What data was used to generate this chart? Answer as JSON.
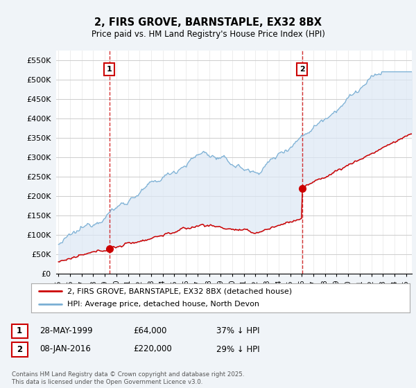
{
  "title": "2, FIRS GROVE, BARNSTAPLE, EX32 8BX",
  "subtitle": "Price paid vs. HM Land Registry's House Price Index (HPI)",
  "background_color": "#f0f4f8",
  "plot_bg_color": "#ffffff",
  "ylim": [
    0,
    575000
  ],
  "yticks": [
    0,
    50000,
    100000,
    150000,
    200000,
    250000,
    300000,
    350000,
    400000,
    450000,
    500000,
    550000
  ],
  "ytick_labels": [
    "£0",
    "£50K",
    "£100K",
    "£150K",
    "£200K",
    "£250K",
    "£300K",
    "£350K",
    "£400K",
    "£450K",
    "£500K",
    "£550K"
  ],
  "sale1_year": 1999.38,
  "sale1_price": 64000,
  "sale2_year": 2016.02,
  "sale2_price": 220000,
  "legend_entry1": "2, FIRS GROVE, BARNSTAPLE, EX32 8BX (detached house)",
  "legend_entry2": "HPI: Average price, detached house, North Devon",
  "table_rows": [
    {
      "num": "1",
      "date": "28-MAY-1999",
      "price": "£64,000",
      "note": "37% ↓ HPI"
    },
    {
      "num": "2",
      "date": "08-JAN-2016",
      "price": "£220,000",
      "note": "29% ↓ HPI"
    }
  ],
  "footer": "Contains HM Land Registry data © Crown copyright and database right 2025.\nThis data is licensed under the Open Government Licence v3.0.",
  "line_color_red": "#cc0000",
  "line_color_blue": "#7aafd4",
  "fill_color_blue": "#dce8f5",
  "vline_color": "#cc0000",
  "grid_color": "#cccccc",
  "x_start_year": 1995,
  "x_end_year": 2025
}
